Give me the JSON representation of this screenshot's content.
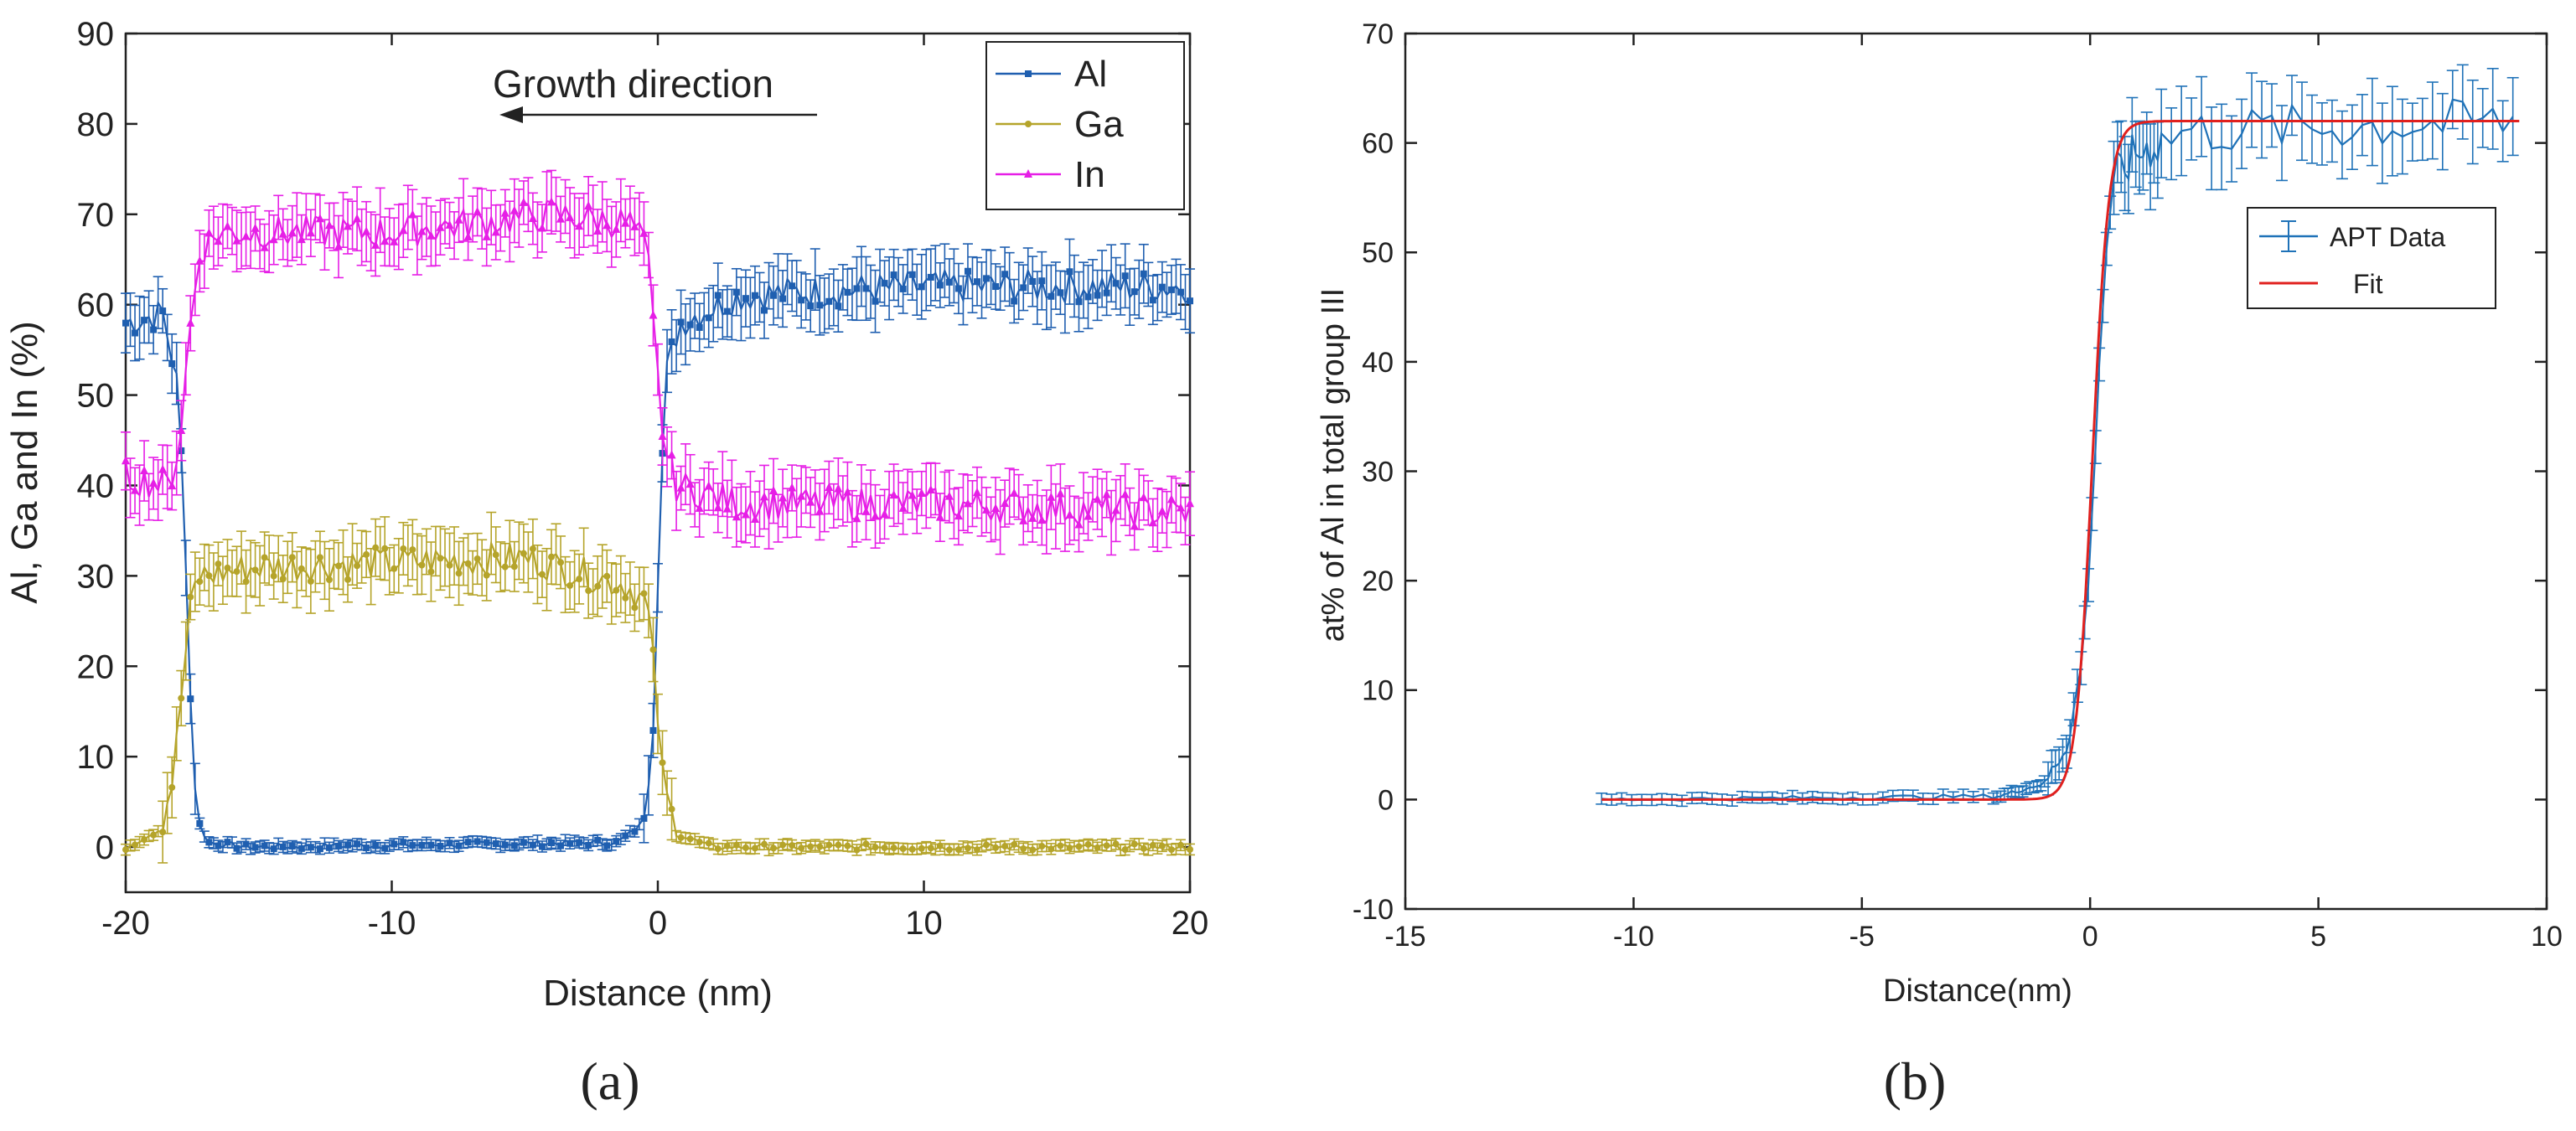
{
  "chart_data": [
    {
      "type": "line",
      "panel_label": "(a)",
      "xlabel": "Distance (nm)",
      "ylabel": "Al, Ga and In (%)",
      "xlim": [
        -20,
        20
      ],
      "ylim": [
        -5,
        90
      ],
      "xticks": [
        -20,
        -10,
        0,
        10,
        20
      ],
      "yticks": [
        0,
        10,
        20,
        30,
        40,
        50,
        60,
        70,
        80,
        90
      ],
      "legend_position": "top-right",
      "annotation": "Growth direction",
      "annotation_arrow": "left",
      "error_bars": true,
      "series": [
        {
          "name": "Al",
          "color": "#1f5fb0",
          "marker": "square",
          "profile": [
            {
              "x": -20,
              "y": 58
            },
            {
              "x": -18.6,
              "y": 59
            },
            {
              "x": -18.1,
              "y": 52
            },
            {
              "x": -17.8,
              "y": 38
            },
            {
              "x": -17.55,
              "y": 15
            },
            {
              "x": -17.3,
              "y": 3
            },
            {
              "x": -16.9,
              "y": 0.5
            },
            {
              "x": -15.5,
              "y": 0
            },
            {
              "x": -1.5,
              "y": 0.5
            },
            {
              "x": -0.6,
              "y": 2.5
            },
            {
              "x": -0.2,
              "y": 12
            },
            {
              "x": 0.05,
              "y": 35
            },
            {
              "x": 0.3,
              "y": 52
            },
            {
              "x": 0.8,
              "y": 58
            },
            {
              "x": 3,
              "y": 61
            },
            {
              "x": 10,
              "y": 62
            },
            {
              "x": 20,
              "y": 62
            }
          ]
        },
        {
          "name": "Ga",
          "color": "#b5a42a",
          "marker": "star",
          "profile": [
            {
              "x": -20,
              "y": 0
            },
            {
              "x": -18.7,
              "y": 2
            },
            {
              "x": -18.2,
              "y": 8
            },
            {
              "x": -17.8,
              "y": 20
            },
            {
              "x": -17.5,
              "y": 28
            },
            {
              "x": -17.2,
              "y": 30
            },
            {
              "x": -15,
              "y": 31
            },
            {
              "x": -5,
              "y": 32
            },
            {
              "x": -1.2,
              "y": 29
            },
            {
              "x": -0.4,
              "y": 27
            },
            {
              "x": -0.1,
              "y": 18
            },
            {
              "x": 0.2,
              "y": 7
            },
            {
              "x": 0.7,
              "y": 1.5
            },
            {
              "x": 2,
              "y": 0
            },
            {
              "x": 20,
              "y": 0
            }
          ]
        },
        {
          "name": "In",
          "color": "#e61ee6",
          "marker": "triangle",
          "profile": [
            {
              "x": -20,
              "y": 41
            },
            {
              "x": -18.4,
              "y": 40
            },
            {
              "x": -18.0,
              "y": 44
            },
            {
              "x": -17.6,
              "y": 57
            },
            {
              "x": -17.2,
              "y": 66
            },
            {
              "x": -16.5,
              "y": 68
            },
            {
              "x": -10,
              "y": 68
            },
            {
              "x": -4,
              "y": 70
            },
            {
              "x": -1.0,
              "y": 69
            },
            {
              "x": -0.4,
              "y": 66
            },
            {
              "x": -0.1,
              "y": 55
            },
            {
              "x": 0.25,
              "y": 44
            },
            {
              "x": 0.7,
              "y": 40
            },
            {
              "x": 3,
              "y": 38
            },
            {
              "x": 10,
              "y": 38
            },
            {
              "x": 20,
              "y": 37
            }
          ]
        }
      ]
    },
    {
      "type": "line",
      "panel_label": "(b)",
      "xlabel": "Distance(nm)",
      "ylabel": "at% of Al in total group III",
      "xlim": [
        -15,
        10
      ],
      "ylim": [
        -10,
        70
      ],
      "xticks": [
        -15,
        -10,
        -5,
        0,
        5,
        10
      ],
      "yticks": [
        -10,
        0,
        10,
        20,
        30,
        40,
        50,
        60,
        70
      ],
      "legend_position": "center-right",
      "series": [
        {
          "name": "APT Data",
          "color": "#1f72b8",
          "error_bars": true,
          "profile": [
            {
              "x": -10.7,
              "y": 0
            },
            {
              "x": -2.0,
              "y": 0.3
            },
            {
              "x": -1.0,
              "y": 1.5
            },
            {
              "x": -0.5,
              "y": 5
            },
            {
              "x": -0.2,
              "y": 12
            },
            {
              "x": 0.0,
              "y": 22
            },
            {
              "x": 0.2,
              "y": 40
            },
            {
              "x": 0.4,
              "y": 53
            },
            {
              "x": 0.6,
              "y": 57
            },
            {
              "x": 1.0,
              "y": 59
            },
            {
              "x": 2.0,
              "y": 61
            },
            {
              "x": 9.4,
              "y": 62
            }
          ]
        },
        {
          "name": "Fit",
          "color": "#e0201e",
          "error_bars": false,
          "model": "logistic",
          "x0": 0.05,
          "width": 0.18,
          "low": 0,
          "high": 62,
          "x_range": [
            -10.7,
            9.4
          ]
        }
      ]
    }
  ]
}
